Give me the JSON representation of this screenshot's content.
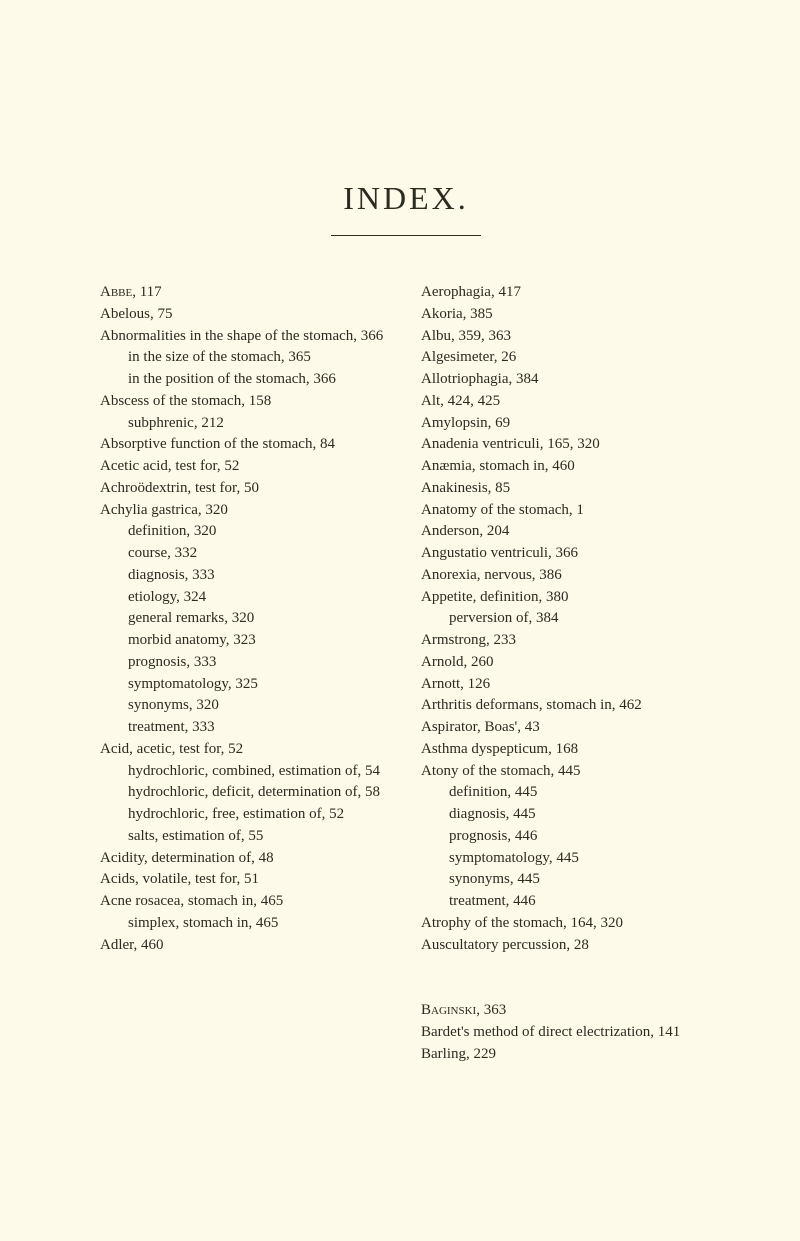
{
  "title": "INDEX.",
  "left": [
    {
      "cls": "entry",
      "html": "<span class=\"smallcaps\">Abbe</span>, 117"
    },
    {
      "cls": "entry",
      "html": "Abelous, 75"
    },
    {
      "cls": "entry",
      "html": "Abnormalities in the shape of the stomach, 366"
    },
    {
      "cls": "sub1",
      "html": "in the size of the stomach, 365"
    },
    {
      "cls": "sub1",
      "html": "in the position of the stomach, 366"
    },
    {
      "cls": "entry",
      "html": "Abscess of the stomach, 158"
    },
    {
      "cls": "sub1",
      "html": "subphrenic, 212"
    },
    {
      "cls": "entry",
      "html": "Absorptive function of the stomach, 84"
    },
    {
      "cls": "entry",
      "html": "Acetic acid, test for, 52"
    },
    {
      "cls": "entry",
      "html": "Achroödextrin, test for, 50"
    },
    {
      "cls": "entry",
      "html": "Achylia gastrica, 320"
    },
    {
      "cls": "sub1",
      "html": "definition, 320"
    },
    {
      "cls": "sub1",
      "html": "course, 332"
    },
    {
      "cls": "sub1",
      "html": "diagnosis, 333"
    },
    {
      "cls": "sub1",
      "html": "etiology, 324"
    },
    {
      "cls": "sub1",
      "html": "general remarks, 320"
    },
    {
      "cls": "sub1",
      "html": "morbid anatomy, 323"
    },
    {
      "cls": "sub1",
      "html": "prognosis, 333"
    },
    {
      "cls": "sub1",
      "html": "symptomatology, 325"
    },
    {
      "cls": "sub1",
      "html": "synonyms, 320"
    },
    {
      "cls": "sub1",
      "html": "treatment, 333"
    },
    {
      "cls": "entry",
      "html": "Acid, acetic, test for, 52"
    },
    {
      "cls": "sub1",
      "html": "hydrochloric, combined, estimation of, 54"
    },
    {
      "cls": "sub1",
      "html": "hydrochloric, deficit, determination of, 58"
    },
    {
      "cls": "sub1",
      "html": "hydrochloric, free, estimation of, 52"
    },
    {
      "cls": "sub1",
      "html": "salts, estimation of, 55"
    },
    {
      "cls": "entry",
      "html": "Acidity, determination of, 48"
    },
    {
      "cls": "entry",
      "html": "Acids, volatile, test for, 51"
    },
    {
      "cls": "entry",
      "html": "Acne rosacea, stomach in, 465"
    },
    {
      "cls": "sub1",
      "html": "simplex, stomach in, 465"
    },
    {
      "cls": "entry",
      "html": "Adler, 460"
    }
  ],
  "right": [
    {
      "cls": "entry",
      "html": "Aerophagia, 417"
    },
    {
      "cls": "entry",
      "html": "Akoria, 385"
    },
    {
      "cls": "entry",
      "html": "Albu, 359, 363"
    },
    {
      "cls": "entry",
      "html": "Algesimeter, 26"
    },
    {
      "cls": "entry",
      "html": "Allotriophagia, 384"
    },
    {
      "cls": "entry",
      "html": "Alt, 424, 425"
    },
    {
      "cls": "entry",
      "html": "Amylopsin, 69"
    },
    {
      "cls": "entry",
      "html": "Anadenia ventriculi, 165, 320"
    },
    {
      "cls": "entry",
      "html": "Anæmia, stomach in, 460"
    },
    {
      "cls": "entry",
      "html": "Anakinesis, 85"
    },
    {
      "cls": "entry",
      "html": "Anatomy of the stomach, 1"
    },
    {
      "cls": "entry",
      "html": "Anderson, 204"
    },
    {
      "cls": "entry",
      "html": "Angustatio ventriculi, 366"
    },
    {
      "cls": "entry",
      "html": "Anorexia, nervous, 386"
    },
    {
      "cls": "entry",
      "html": "Appetite, definition, 380"
    },
    {
      "cls": "sub1",
      "html": "perversion of, 384"
    },
    {
      "cls": "entry",
      "html": "Armstrong, 233"
    },
    {
      "cls": "entry",
      "html": "Arnold, 260"
    },
    {
      "cls": "entry",
      "html": "Arnott, 126"
    },
    {
      "cls": "entry",
      "html": "Arthritis deformans, stomach in, 462"
    },
    {
      "cls": "entry",
      "html": "Aspirator, Boas', 43"
    },
    {
      "cls": "entry",
      "html": "Asthma dyspepticum, 168"
    },
    {
      "cls": "entry",
      "html": "Atony of the stomach, 445"
    },
    {
      "cls": "sub1",
      "html": "definition, 445"
    },
    {
      "cls": "sub1",
      "html": "diagnosis, 445"
    },
    {
      "cls": "sub1",
      "html": "prognosis, 446"
    },
    {
      "cls": "sub1",
      "html": "symptomatology, 445"
    },
    {
      "cls": "sub1",
      "html": "synonyms, 445"
    },
    {
      "cls": "sub1",
      "html": "treatment, 446"
    },
    {
      "cls": "entry",
      "html": "Atrophy of the stomach, 164, 320"
    },
    {
      "cls": "entry",
      "html": "Auscultatory percussion, 28"
    },
    {
      "cls": "gap",
      "html": ""
    },
    {
      "cls": "entry",
      "html": "<span class=\"smallcaps\">Baginski</span>, 363"
    },
    {
      "cls": "entry",
      "html": "Bardet's method of direct electrization, 141"
    },
    {
      "cls": "entry",
      "html": "Barling, 229"
    }
  ]
}
